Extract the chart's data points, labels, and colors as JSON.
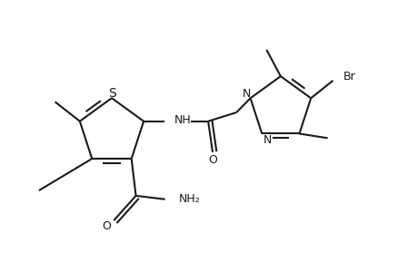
{
  "background": "#ffffff",
  "line_color": "#1a1a1a",
  "line_width": 1.5,
  "font_size": 9,
  "fig_width": 4.6,
  "fig_height": 3.0,
  "dpi": 100,
  "xlim": [
    0.3,
    5.0
  ],
  "ylim": [
    0.5,
    3.2
  ]
}
